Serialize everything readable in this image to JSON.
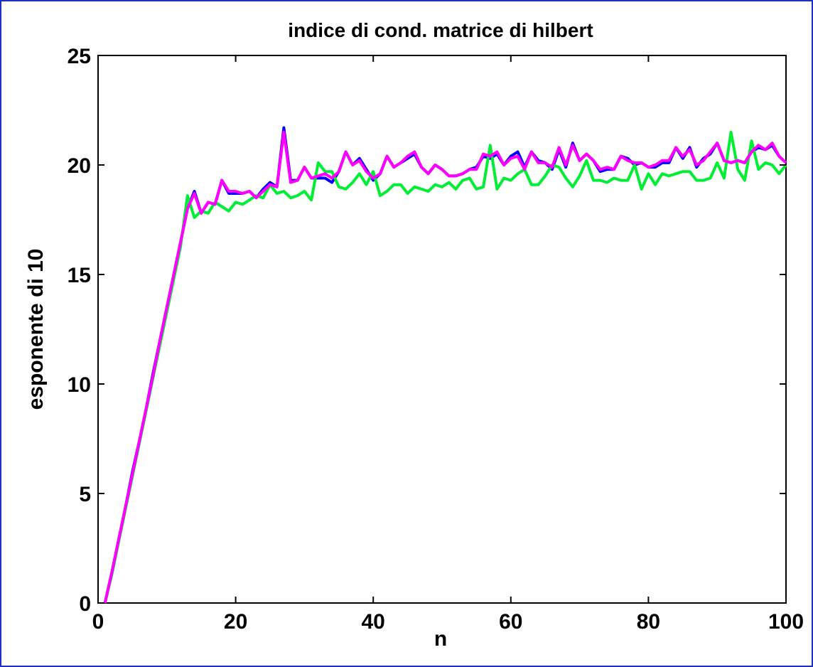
{
  "chart_data": {
    "type": "line",
    "title": "indice di cond. matrice di hilbert",
    "xlabel": "n",
    "ylabel": "esponente di 10",
    "xlim": [
      0,
      100
    ],
    "ylim": [
      0,
      25
    ],
    "xticks": [
      0,
      20,
      40,
      60,
      80,
      100
    ],
    "yticks": [
      0,
      5,
      10,
      15,
      20,
      25
    ],
    "grid": false,
    "x": [
      1,
      2,
      3,
      4,
      5,
      6,
      7,
      8,
      9,
      10,
      11,
      12,
      13,
      14,
      15,
      16,
      17,
      18,
      19,
      20,
      21,
      22,
      23,
      24,
      25,
      26,
      27,
      28,
      29,
      30,
      31,
      32,
      33,
      34,
      35,
      36,
      37,
      38,
      39,
      40,
      41,
      42,
      43,
      44,
      45,
      46,
      47,
      48,
      49,
      50,
      51,
      52,
      53,
      54,
      55,
      56,
      57,
      58,
      59,
      60,
      61,
      62,
      63,
      64,
      65,
      66,
      67,
      68,
      69,
      70,
      71,
      72,
      73,
      74,
      75,
      76,
      77,
      78,
      79,
      80,
      81,
      82,
      83,
      84,
      85,
      86,
      87,
      88,
      89,
      90,
      91,
      92,
      93,
      94,
      95,
      96,
      97,
      98,
      99,
      100
    ],
    "series": [
      {
        "color": "#0000ff",
        "values": [
          0,
          1.4,
          2.9,
          4.4,
          6.0,
          7.4,
          8.9,
          10.5,
          12.0,
          13.5,
          15.0,
          16.5,
          18.0,
          18.8,
          17.8,
          18.3,
          18.2,
          19.3,
          18.7,
          18.7,
          18.7,
          18.8,
          18.5,
          18.9,
          19.2,
          19.0,
          21.7,
          19.3,
          19.3,
          19.9,
          19.4,
          19.4,
          19.4,
          19.2,
          19.7,
          20.6,
          20.0,
          20.3,
          19.8,
          19.3,
          19.6,
          20.4,
          19.9,
          20.1,
          20.3,
          20.5,
          19.9,
          19.6,
          20.0,
          19.8,
          19.5,
          19.5,
          19.6,
          19.8,
          19.9,
          20.4,
          20.3,
          20.5,
          20.0,
          20.4,
          20.6,
          19.9,
          20.6,
          20.2,
          20.1,
          19.8,
          20.7,
          19.9,
          21.0,
          20.2,
          20.5,
          20.2,
          19.7,
          19.8,
          19.8,
          20.4,
          20.3,
          20.0,
          20.1,
          19.9,
          19.9,
          20.1,
          20.1,
          20.8,
          20.3,
          20.8,
          19.9,
          20.3,
          20.5,
          21.0,
          20.2,
          20.1,
          20.2,
          20.1,
          20.6,
          20.8,
          20.7,
          20.9,
          20.4,
          20.1
        ]
      },
      {
        "color": "#00ee33",
        "values": [
          0,
          1.3,
          2.8,
          4.3,
          5.8,
          7.3,
          8.8,
          10.3,
          11.8,
          13.3,
          14.8,
          16.3,
          18.6,
          17.6,
          17.9,
          17.8,
          18.3,
          18.1,
          17.9,
          18.3,
          18.2,
          18.4,
          18.6,
          18.5,
          19.1,
          18.7,
          18.8,
          18.5,
          18.6,
          18.8,
          18.4,
          20.1,
          19.7,
          19.7,
          19.0,
          18.9,
          19.2,
          19.6,
          19.1,
          19.7,
          18.6,
          18.8,
          19.1,
          19.1,
          18.7,
          19.0,
          18.9,
          18.8,
          19.1,
          19.0,
          19.2,
          18.9,
          19.3,
          19.4,
          18.9,
          19.0,
          20.9,
          18.9,
          19.4,
          19.3,
          19.6,
          19.8,
          19.1,
          19.1,
          19.5,
          20.0,
          19.9,
          19.4,
          19.0,
          19.5,
          20.2,
          19.3,
          19.3,
          19.2,
          19.4,
          19.3,
          19.3,
          20.0,
          18.9,
          19.6,
          19.1,
          19.6,
          19.5,
          19.6,
          19.7,
          19.7,
          19.3,
          19.3,
          19.4,
          20.1,
          19.4,
          21.5,
          19.8,
          19.3,
          21.1,
          19.8,
          20.1,
          20.0,
          19.6,
          20.0
        ]
      },
      {
        "color": "#ff00ff",
        "values": [
          0,
          1.4,
          2.9,
          4.4,
          5.9,
          7.4,
          8.9,
          10.4,
          12.0,
          13.5,
          15.0,
          16.5,
          18.0,
          18.7,
          17.8,
          18.3,
          18.2,
          19.3,
          18.8,
          18.8,
          18.7,
          18.8,
          18.5,
          18.8,
          19.1,
          19.0,
          21.5,
          19.2,
          19.3,
          19.9,
          19.4,
          19.5,
          19.6,
          19.4,
          19.7,
          20.6,
          20.0,
          20.2,
          19.7,
          19.4,
          19.6,
          20.4,
          19.9,
          20.1,
          20.4,
          20.6,
          19.9,
          19.6,
          20.0,
          19.8,
          19.5,
          19.5,
          19.6,
          19.8,
          19.8,
          20.5,
          20.4,
          20.6,
          20.0,
          20.3,
          20.4,
          19.8,
          20.6,
          20.1,
          20.1,
          19.9,
          20.8,
          20.0,
          20.9,
          20.2,
          20.5,
          20.2,
          19.8,
          19.9,
          19.8,
          20.4,
          20.2,
          20.1,
          20.1,
          19.9,
          20.0,
          20.2,
          20.2,
          20.8,
          20.4,
          20.7,
          20.0,
          20.2,
          20.6,
          21.0,
          20.2,
          20.1,
          20.2,
          20.1,
          20.6,
          20.9,
          20.7,
          21.0,
          20.4,
          20.1
        ]
      }
    ]
  }
}
